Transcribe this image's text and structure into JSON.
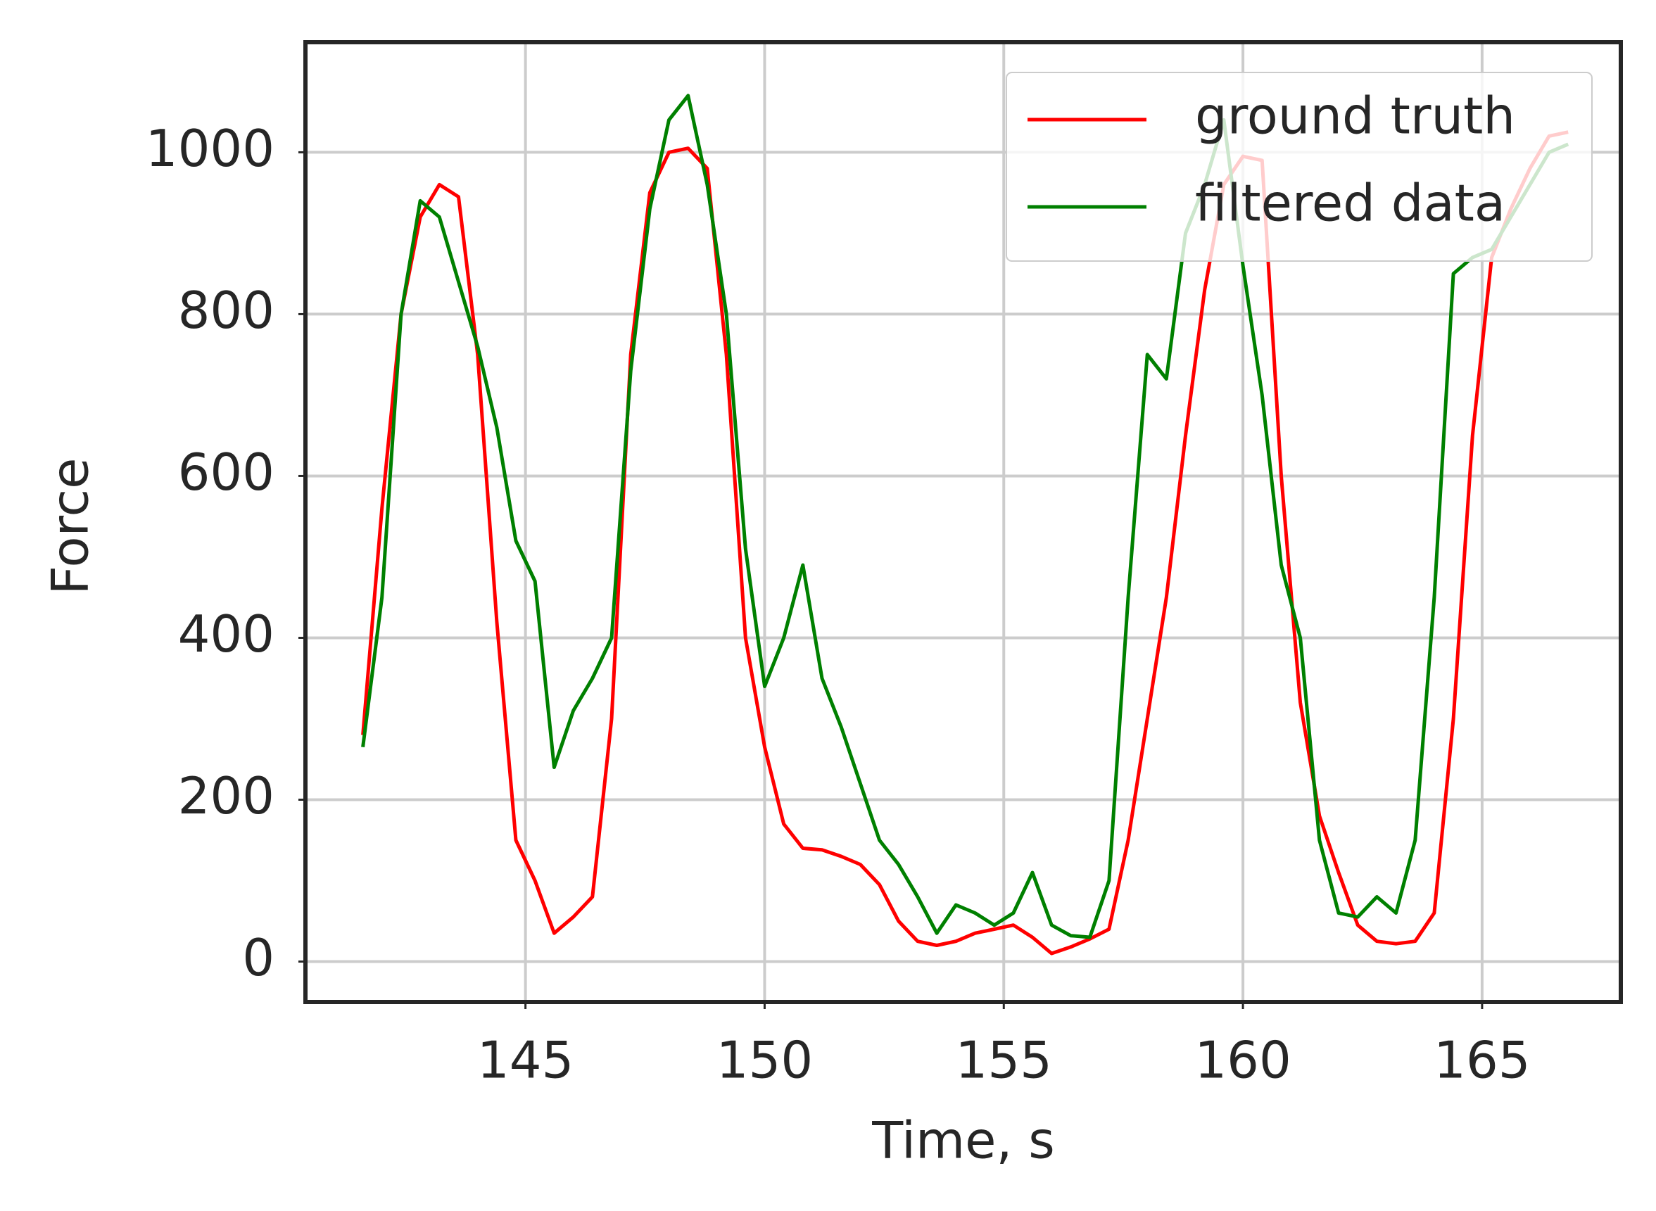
{
  "chart_data": {
    "type": "line",
    "xlabel": "Time, s",
    "ylabel": "Force",
    "x": [
      141.6,
      142.0,
      142.4,
      142.8,
      143.2,
      143.6,
      144.0,
      144.4,
      144.8,
      145.2,
      145.6,
      146.0,
      146.4,
      146.8,
      147.2,
      147.6,
      148.0,
      148.4,
      148.8,
      149.2,
      149.6,
      150.0,
      150.4,
      150.8,
      151.2,
      151.6,
      152.0,
      152.4,
      152.8,
      153.2,
      153.6,
      154.0,
      154.4,
      154.8,
      155.2,
      155.6,
      156.0,
      156.4,
      156.8,
      157.2,
      157.6,
      158.0,
      158.4,
      158.8,
      159.2,
      159.6,
      160.0,
      160.4,
      160.8,
      161.2,
      161.6,
      162.0,
      162.4,
      162.8,
      163.2,
      163.6,
      164.0,
      164.4,
      164.8,
      165.2,
      165.6,
      166.0,
      166.4,
      166.8
    ],
    "series": [
      {
        "name": "ground truth",
        "color": "#ff0000",
        "values": [
          280,
          560,
          800,
          920,
          960,
          945,
          750,
          420,
          150,
          100,
          35,
          55,
          80,
          300,
          750,
          950,
          1000,
          1005,
          980,
          750,
          400,
          265,
          170,
          140,
          138,
          130,
          120,
          95,
          50,
          25,
          20,
          25,
          35,
          40,
          45,
          30,
          10,
          18,
          28,
          40,
          150,
          300,
          450,
          650,
          830,
          960,
          995,
          990,
          600,
          320,
          180,
          110,
          45,
          25,
          22,
          25,
          60,
          300,
          650,
          870,
          930,
          980,
          1020,
          1025
        ]
      },
      {
        "name": "filtered data",
        "color": "#008000",
        "values": [
          265,
          450,
          800,
          940,
          920,
          840,
          760,
          660,
          520,
          470,
          240,
          310,
          350,
          400,
          730,
          930,
          1040,
          1070,
          960,
          800,
          510,
          340,
          400,
          490,
          350,
          290,
          220,
          150,
          120,
          80,
          35,
          70,
          60,
          45,
          60,
          110,
          45,
          32,
          30,
          100,
          450,
          750,
          720,
          900,
          960,
          1040,
          860,
          700,
          490,
          400,
          150,
          60,
          55,
          80,
          60,
          150,
          450,
          850,
          870,
          880,
          920,
          960,
          1000,
          1010
        ]
      }
    ],
    "xlim": [
      140.4,
      167.9
    ],
    "ylim": [
      -50,
      1136
    ],
    "xticks": [
      145,
      150,
      155,
      160,
      165
    ],
    "yticks": [
      0,
      200,
      400,
      600,
      800,
      1000
    ],
    "grid": true,
    "legend": "upper right"
  }
}
